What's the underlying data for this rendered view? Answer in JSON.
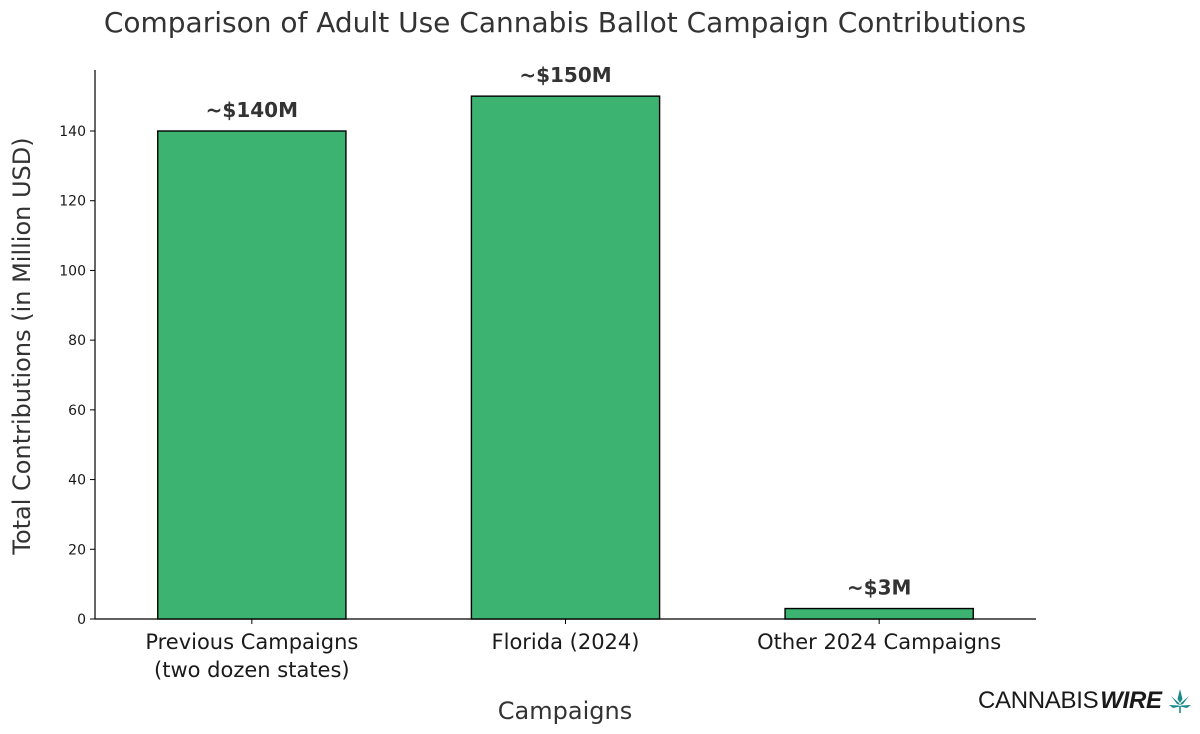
{
  "chart_data": {
    "type": "bar",
    "title": "Comparison of Adult Use Cannabis Ballot Campaign Contributions",
    "xlabel": "Campaigns",
    "ylabel": "Total Contributions (in Million USD)",
    "categories": [
      [
        "Previous Campaigns",
        "(two dozen states)"
      ],
      [
        "Florida (2024)"
      ],
      [
        "Other 2024 Campaigns"
      ]
    ],
    "values": [
      140,
      150,
      3
    ],
    "data_labels": [
      "~$140M",
      "~$150M",
      "~$3M"
    ],
    "ylim": [
      0,
      157.5
    ],
    "yticks": [
      0,
      20,
      40,
      60,
      80,
      100,
      120,
      140
    ],
    "bar_color": "#3cb371",
    "edge_color": "#000000",
    "grid": false
  },
  "branding": {
    "logo_part1": "CANNABIS",
    "logo_part2": "WIRE",
    "icon": "cannabis-leaf-icon",
    "icon_color": "#1a8a8a"
  }
}
